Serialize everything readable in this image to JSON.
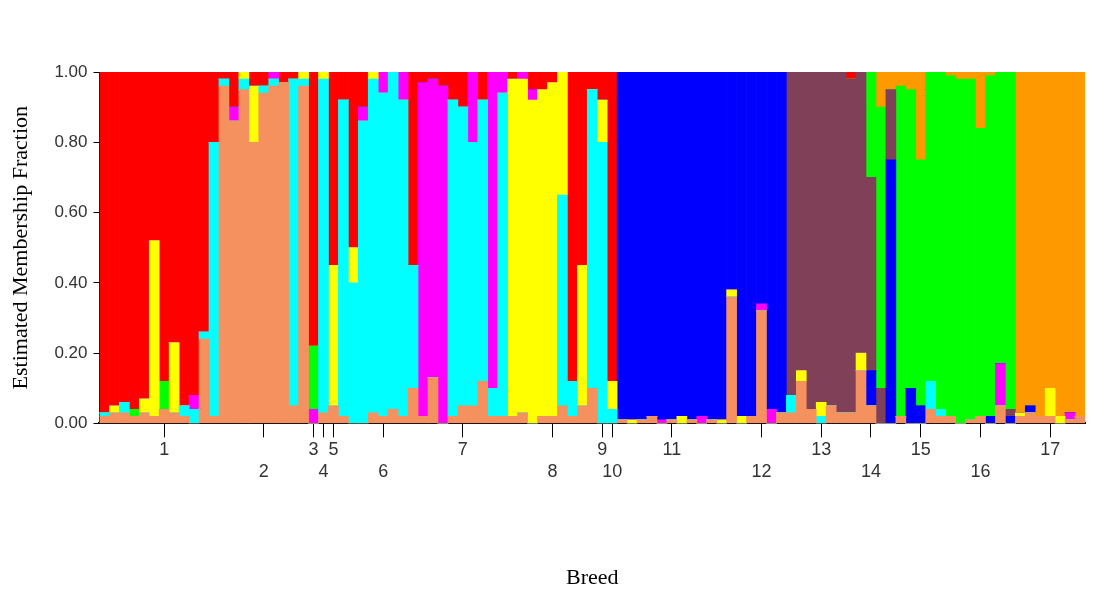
{
  "chart_data": {
    "type": "bar",
    "stacked": true,
    "xlabel": "Breed",
    "ylabel": "Estimated Membership Fraction",
    "ylim": [
      0,
      1
    ],
    "yticks": [
      {
        "value": 0,
        "label": "0.00"
      },
      {
        "value": 0.2,
        "label": "0.20"
      },
      {
        "value": 0.4,
        "label": "0.40"
      },
      {
        "value": 0.6,
        "label": "0.60"
      },
      {
        "value": 0.8,
        "label": "0.80"
      },
      {
        "value": 1,
        "label": "1.00"
      }
    ],
    "grid": false,
    "categories": [
      null,
      null,
      null,
      null,
      null,
      null,
      "1",
      null,
      null,
      null,
      null,
      null,
      null,
      null,
      null,
      null,
      "2",
      null,
      null,
      null,
      null,
      "3",
      "4",
      "5",
      null,
      null,
      null,
      null,
      "6",
      null,
      null,
      null,
      null,
      null,
      null,
      null,
      "7",
      null,
      null,
      null,
      null,
      null,
      null,
      null,
      null,
      "8",
      null,
      null,
      null,
      null,
      "9",
      "10",
      null,
      null,
      null,
      null,
      null,
      "11",
      null,
      null,
      null,
      null,
      null,
      null,
      null,
      null,
      "12",
      null,
      null,
      null,
      null,
      null,
      "13",
      null,
      null,
      null,
      null,
      "14",
      null,
      null,
      null,
      null,
      "15",
      null,
      null,
      null,
      null,
      null,
      "16",
      null,
      null,
      null,
      null,
      null,
      null,
      "17",
      null,
      null,
      null
    ],
    "series": [
      {
        "color": "#f4915e",
        "values": [
          0.02,
          0.03,
          0.03,
          0.02,
          0.03,
          0.02,
          0.04,
          0.03,
          0.02,
          0,
          0.24,
          0.02,
          0.96,
          0.86,
          0.95,
          0.8,
          0.94,
          0.96,
          0.97,
          0.05,
          0.96,
          0,
          0.03,
          0.05,
          0.02,
          0,
          0,
          0.03,
          0.02,
          0.04,
          0.02,
          0.1,
          0.02,
          0.13,
          0,
          0.02,
          0.05,
          0.05,
          0.12,
          0.02,
          0.02,
          0.02,
          0.03,
          0,
          0.02,
          0.02,
          0.05,
          0.02,
          0.05,
          0.1,
          0,
          0,
          0.01,
          0,
          0.01,
          0.02,
          0,
          0.01,
          0,
          0.01,
          0,
          0.01,
          0,
          0.36,
          0,
          0.02,
          0.32,
          0,
          0.03,
          0.03,
          0.12,
          0.04,
          0,
          0.05,
          0.03,
          0.03,
          0.15,
          0.05,
          0,
          0,
          0.02,
          0,
          0,
          0.04,
          0.02,
          0.02,
          0,
          0.01,
          0.02,
          0,
          0.05,
          0,
          0.02,
          0.03,
          0.02,
          0.02,
          0,
          0.01,
          0.02
        ]
      },
      {
        "color": "#00ffff",
        "values": [
          0.01,
          0,
          0.03,
          0,
          0,
          0,
          0,
          0,
          0.03,
          0.04,
          0.02,
          0.78,
          0.02,
          0,
          0.03,
          0,
          0.02,
          0.02,
          0,
          0.93,
          0.02,
          0,
          0.95,
          0,
          0.9,
          0.4,
          0.86,
          0.95,
          0.92,
          0.96,
          0.9,
          0.35,
          0,
          0,
          0,
          0.9,
          0.85,
          0.75,
          0.8,
          0.08,
          0.92,
          0,
          0,
          0,
          0,
          0,
          0.6,
          0.1,
          0,
          0.85,
          0.8,
          0.04,
          0,
          0,
          0,
          0,
          0,
          0,
          0,
          0,
          0,
          0,
          0,
          0,
          0,
          0,
          0,
          0,
          0,
          0.05,
          0,
          0,
          0.02,
          0,
          0,
          0,
          0,
          0,
          0,
          0,
          0,
          0,
          0,
          0.08,
          0.02,
          0,
          0,
          0,
          0,
          0,
          0,
          0,
          0,
          0,
          0,
          0,
          0,
          0,
          0
        ]
      },
      {
        "color": "#ffff00",
        "values": [
          0,
          0.02,
          0,
          0,
          0.04,
          0.5,
          0,
          0.2,
          0,
          0,
          0,
          0,
          0,
          0,
          0.02,
          0.16,
          0,
          0,
          0,
          0,
          0.02,
          0,
          0.02,
          0.4,
          0,
          0.1,
          0,
          0.02,
          0,
          0,
          0,
          0,
          0,
          0,
          0,
          0,
          0,
          0,
          0,
          0,
          0,
          0.96,
          0.95,
          0.92,
          0.93,
          0.95,
          0.35,
          0,
          0.4,
          0,
          0.12,
          0.08,
          0,
          0.01,
          0,
          0,
          0,
          0,
          0.02,
          0,
          0,
          0,
          0.01,
          0.02,
          0.02,
          0,
          0,
          0,
          0,
          0,
          0.03,
          0,
          0.04,
          0,
          0,
          0,
          0.05,
          0,
          0,
          0,
          0,
          0,
          0,
          0,
          0,
          0,
          0,
          0,
          0,
          0,
          0,
          0,
          0.01,
          0,
          0,
          0.08,
          0.02,
          0,
          0
        ]
      },
      {
        "color": "#ff00ff",
        "values": [
          0,
          0,
          0,
          0,
          0,
          0,
          0,
          0,
          0,
          0.04,
          0,
          0,
          0,
          0.04,
          0,
          0,
          0,
          0.02,
          0,
          0,
          0,
          0.04,
          0,
          0,
          0,
          0,
          0.04,
          0,
          0.06,
          0,
          0.08,
          0,
          0.95,
          0.85,
          0.96,
          0,
          0,
          0.2,
          0,
          0.9,
          0.06,
          0,
          0.02,
          0.03,
          0,
          0,
          0,
          0,
          0,
          0,
          0,
          0,
          0,
          0,
          0,
          0,
          0.01,
          0,
          0,
          0,
          0.02,
          0,
          0,
          0,
          0,
          0,
          0.02,
          0.04,
          0,
          0,
          0,
          0,
          0,
          0,
          0,
          0,
          0,
          0,
          0,
          0,
          0,
          0,
          0,
          0,
          0,
          0,
          0,
          0,
          0,
          0,
          0.12,
          0,
          0,
          0,
          0,
          0,
          0,
          0.02,
          0
        ]
      },
      {
        "color": "#0000ff",
        "values": [
          0,
          0,
          0,
          0,
          0,
          0,
          0,
          0,
          0,
          0,
          0,
          0,
          0,
          0,
          0,
          0,
          0,
          0,
          0,
          0,
          0,
          0,
          0,
          0,
          0,
          0,
          0,
          0,
          0,
          0,
          0,
          0,
          0,
          0,
          0,
          0,
          0,
          0,
          0,
          0,
          0,
          0,
          0,
          0,
          0,
          0,
          0,
          0,
          0,
          0,
          0,
          0,
          0.99,
          0.99,
          0.99,
          0.98,
          0.99,
          0.99,
          0.98,
          0.99,
          0.98,
          0.99,
          0.99,
          0.62,
          0.98,
          0.98,
          0.66,
          0.96,
          0.97,
          0,
          0,
          0,
          0,
          0,
          0,
          0,
          0,
          0.1,
          0,
          0.75,
          0,
          0.1,
          0.05,
          0,
          0,
          0,
          0,
          0,
          0,
          0.02,
          0,
          0.02,
          0,
          0.02,
          0,
          0,
          0,
          0,
          0
        ]
      },
      {
        "color": "#804058",
        "values": [
          0,
          0,
          0,
          0,
          0,
          0,
          0,
          0,
          0,
          0,
          0,
          0,
          0,
          0,
          0,
          0,
          0,
          0,
          0,
          0,
          0,
          0,
          0,
          0,
          0,
          0,
          0,
          0,
          0,
          0,
          0,
          0,
          0,
          0,
          0,
          0,
          0,
          0,
          0,
          0,
          0,
          0,
          0,
          0,
          0,
          0,
          0,
          0,
          0,
          0,
          0,
          0,
          0,
          0,
          0,
          0,
          0,
          0,
          0,
          0,
          0,
          0,
          0,
          0,
          0,
          0,
          0,
          0,
          0,
          0.92,
          0.85,
          0.96,
          0.94,
          0.95,
          0.97,
          0.95,
          0.8,
          0.55,
          0.1,
          0.2,
          0,
          0,
          0,
          0,
          0,
          0,
          0,
          0,
          0,
          0,
          0,
          0.02,
          0,
          0,
          0,
          0,
          0,
          0,
          0
        ]
      },
      {
        "color": "#00ff00",
        "values": [
          0,
          0,
          0,
          0.02,
          0,
          0,
          0.08,
          0,
          0,
          0,
          0,
          0,
          0,
          0,
          0,
          0,
          0,
          0,
          0,
          0,
          0,
          0.18,
          0,
          0,
          0,
          0,
          0,
          0,
          0,
          0,
          0,
          0,
          0,
          0,
          0,
          0,
          0,
          0,
          0,
          0,
          0,
          0,
          0,
          0,
          0,
          0,
          0,
          0,
          0,
          0,
          0,
          0,
          0,
          0,
          0,
          0,
          0,
          0,
          0,
          0,
          0,
          0,
          0,
          0,
          0,
          0,
          0,
          0,
          0,
          0,
          0,
          0,
          0,
          0,
          0,
          0,
          0,
          0.3,
          0.8,
          0,
          0.94,
          0.85,
          0.7,
          0.88,
          0.96,
          0.97,
          0.98,
          0.97,
          0.82,
          0.97,
          0.83,
          0.96,
          0,
          0,
          0,
          0,
          0,
          0,
          0
        ]
      },
      {
        "color": "#ff9900",
        "values": [
          0,
          0,
          0,
          0,
          0,
          0,
          0,
          0,
          0,
          0,
          0,
          0,
          0,
          0,
          0,
          0,
          0,
          0,
          0,
          0,
          0,
          0,
          0,
          0,
          0,
          0,
          0,
          0,
          0,
          0,
          0,
          0,
          0,
          0,
          0,
          0,
          0,
          0,
          0,
          0,
          0,
          0,
          0,
          0,
          0,
          0,
          0,
          0,
          0,
          0,
          0,
          0,
          0,
          0,
          0,
          0,
          0,
          0,
          0,
          0,
          0,
          0,
          0,
          0,
          0,
          0,
          0,
          0,
          0,
          0,
          0,
          0,
          0,
          0,
          0,
          0,
          0,
          0,
          0.1,
          0.05,
          0.04,
          0.05,
          0.25,
          0,
          0,
          0.01,
          0.02,
          0.02,
          0.16,
          0.01,
          0,
          0,
          0.97,
          0.95,
          0.98,
          0.9,
          0.98,
          0.97,
          0.98
        ]
      },
      {
        "color": "#ff0000",
        "values": [
          0.97,
          0.95,
          0.94,
          0.96,
          0.93,
          0.48,
          0.88,
          0.77,
          0.95,
          0.92,
          0.74,
          0.2,
          0.02,
          0.1,
          0,
          0.04,
          0.04,
          0,
          0.03,
          0.02,
          0,
          0.78,
          0,
          0.55,
          0.08,
          0.5,
          0.1,
          0,
          0,
          0,
          0,
          0.55,
          0.03,
          0.02,
          0.04,
          0.08,
          0.1,
          0,
          0.08,
          0,
          0,
          0.02,
          0,
          0.05,
          0.05,
          0.03,
          0,
          0.88,
          0.55,
          0.05,
          0.08,
          0.88,
          0,
          0,
          0,
          0,
          0,
          0,
          0,
          0,
          0,
          0,
          0,
          0,
          0,
          0,
          0,
          0,
          0,
          0,
          0,
          0,
          0,
          0,
          0,
          0.02,
          0,
          0,
          0,
          0,
          0,
          0,
          0,
          0,
          0,
          0,
          0,
          0,
          0,
          0,
          0,
          0,
          0,
          0,
          0,
          0,
          0,
          0,
          0
        ]
      }
    ]
  }
}
